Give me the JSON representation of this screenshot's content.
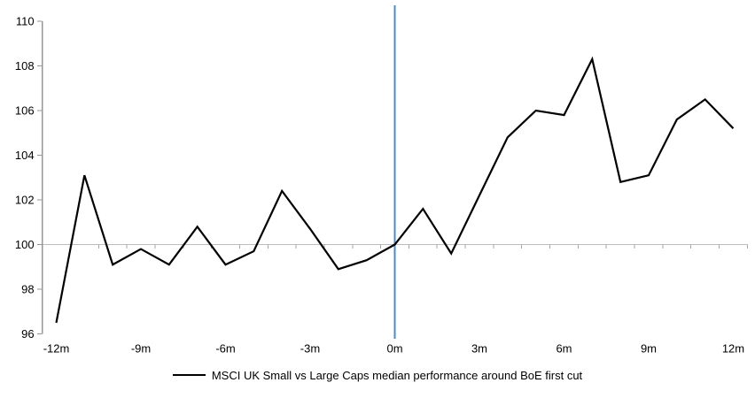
{
  "chart_data": {
    "type": "line",
    "title": "",
    "xlabel": "",
    "ylabel": "",
    "x_months": [
      -12,
      -11,
      -10,
      -9,
      -8,
      -7,
      -6,
      -5,
      -4,
      -3,
      -2,
      -1,
      0,
      1,
      2,
      3,
      4,
      5,
      6,
      7,
      8,
      9,
      10,
      11,
      12
    ],
    "series": [
      {
        "name": "MSCI UK Small vs Large Caps median performance around BoE first cut",
        "values": [
          96.5,
          103.1,
          99.1,
          99.8,
          99.1,
          100.8,
          99.1,
          99.7,
          102.4,
          100.7,
          98.9,
          99.3,
          100.0,
          101.6,
          99.6,
          102.2,
          104.8,
          106.0,
          105.8,
          108.3,
          102.8,
          103.1,
          105.6,
          106.5,
          105.2
        ]
      }
    ],
    "ylim": [
      96,
      110
    ],
    "y_ticks": [
      96,
      98,
      100,
      102,
      104,
      106,
      108,
      110
    ],
    "x_tick_months": [
      -12,
      -9,
      -6,
      -3,
      0,
      3,
      6,
      9,
      12
    ],
    "x_tick_labels": [
      "-12m",
      "-9m",
      "-6m",
      "-3m",
      "0m",
      "3m",
      "6m",
      "9m",
      "12m"
    ],
    "baseline_value": 100,
    "event_line_month": 0,
    "grid": "baseline-only",
    "legend_position": "bottom-center",
    "colors": {
      "series_line": "#000000",
      "event_line": "#4e88c7",
      "baseline_line": "#bdbdbd",
      "minor_tick": "#a6a6a6",
      "y_axis": "#969696",
      "text": "#000000"
    }
  }
}
